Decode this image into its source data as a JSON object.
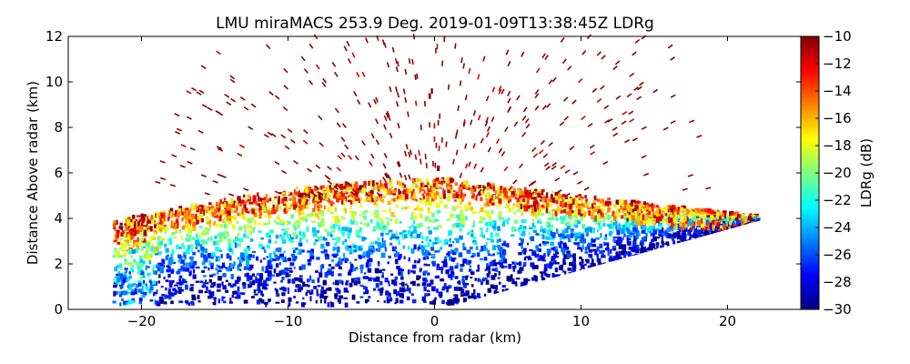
{
  "chart_data": {
    "type": "heatmap",
    "title": "LMU miraMACS 253.9 Deg. 2019-01-09T13:38:45Z  LDRg",
    "xlabel": "Distance from radar (km)",
    "ylabel": "Distance Above radar  (km)",
    "xlim": [
      -25,
      25
    ],
    "ylim": [
      0,
      12
    ],
    "x_ticks": [
      -20,
      -10,
      0,
      10,
      20
    ],
    "x_tick_labels": [
      "−20",
      "−10",
      "0",
      "10",
      "20"
    ],
    "y_ticks": [
      0,
      2,
      4,
      6,
      8,
      10,
      12
    ],
    "y_tick_labels": [
      "0",
      "2",
      "4",
      "6",
      "8",
      "10",
      "12"
    ],
    "colorbar": {
      "label": "LDRg (dB)",
      "range": [
        -30,
        -10
      ],
      "ticks": [
        -10,
        -12,
        -14,
        -16,
        -18,
        -20,
        -22,
        -24,
        -26,
        -28,
        -30
      ],
      "tick_labels": [
        "−10",
        "−12",
        "−14",
        "−16",
        "−18",
        "−20",
        "−22",
        "−24",
        "−26",
        "−28",
        "−30"
      ],
      "colormap": "jet",
      "colors": [
        "#00007f",
        "#0000ff",
        "#007fff",
        "#00ffff",
        "#7fff7f",
        "#ffff00",
        "#ff7f00",
        "#ff0000",
        "#7f0000"
      ]
    },
    "scan": {
      "x_range_km": [
        -22,
        22
      ],
      "left_edge_max_height_km": 4.0,
      "right_edge_max_height_km": 3.9,
      "dense_layer_top_km": 6.0,
      "sparse_echo_top_km": 12.0
    }
  }
}
